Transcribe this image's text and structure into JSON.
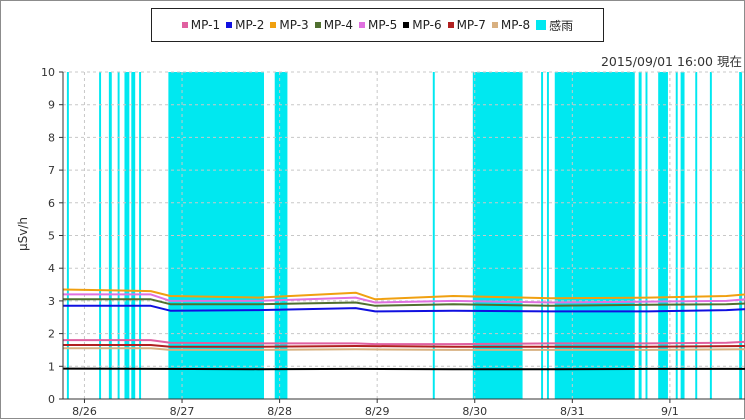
{
  "chart_data": {
    "type": "line",
    "title": "",
    "timestamp": "2015/09/01 16:00 現在",
    "ylabel": "μSv/h",
    "xlabel": "",
    "ylim": [
      0,
      10
    ],
    "yticks": [
      "0",
      "1",
      "2",
      "3",
      "4",
      "5",
      "6",
      "7",
      "8",
      "9",
      "10"
    ],
    "grid": true,
    "legend_position": "top",
    "x_range_days": [
      0,
      7
    ],
    "x_tick_labels": [
      {
        "label": "8/26",
        "day": 0.22
      },
      {
        "label": "8/27",
        "day": 1.22
      },
      {
        "label": "8/28",
        "day": 2.22
      },
      {
        "label": "8/29",
        "day": 3.22
      },
      {
        "label": "8/30",
        "day": 4.22
      },
      {
        "label": "8/31",
        "day": 5.22
      },
      {
        "label": "9/1",
        "day": 6.22
      }
    ],
    "series": [
      {
        "name": "MP-1",
        "color": "#e060a0",
        "x": [
          0,
          0.9,
          1.1,
          2.0,
          3.0,
          3.2,
          4.0,
          5.0,
          6.0,
          6.8,
          7.0
        ],
        "values": [
          1.8,
          1.8,
          1.72,
          1.7,
          1.7,
          1.68,
          1.68,
          1.7,
          1.7,
          1.72,
          1.75
        ]
      },
      {
        "name": "MP-2",
        "color": "#1010e0",
        "x": [
          0,
          0.9,
          1.1,
          2.0,
          3.0,
          3.2,
          4.0,
          5.0,
          6.0,
          6.8,
          7.0
        ],
        "values": [
          2.85,
          2.85,
          2.7,
          2.72,
          2.78,
          2.68,
          2.7,
          2.68,
          2.68,
          2.72,
          2.75
        ]
      },
      {
        "name": "MP-3",
        "color": "#f0a010",
        "x": [
          0,
          0.9,
          1.1,
          2.0,
          3.0,
          3.2,
          4.0,
          5.0,
          6.0,
          6.8,
          7.0
        ],
        "values": [
          3.35,
          3.3,
          3.15,
          3.1,
          3.25,
          3.05,
          3.15,
          3.08,
          3.1,
          3.15,
          3.2
        ]
      },
      {
        "name": "MP-4",
        "color": "#507030",
        "x": [
          0,
          0.9,
          1.1,
          2.0,
          3.0,
          3.2,
          4.0,
          5.0,
          6.0,
          6.8,
          7.0
        ],
        "values": [
          3.05,
          3.05,
          2.9,
          2.9,
          2.95,
          2.85,
          2.9,
          2.85,
          2.88,
          2.9,
          2.92
        ]
      },
      {
        "name": "MP-5",
        "color": "#e070e0",
        "x": [
          0,
          0.9,
          1.1,
          2.0,
          3.0,
          3.2,
          4.0,
          5.0,
          6.0,
          6.8,
          7.0
        ],
        "values": [
          3.2,
          3.2,
          3.0,
          3.0,
          3.1,
          2.95,
          3.0,
          2.95,
          2.98,
          3.0,
          3.05
        ]
      },
      {
        "name": "MP-6",
        "color": "#000000",
        "x": [
          0,
          1.0,
          2.0,
          3.0,
          4.0,
          5.0,
          6.0,
          7.0
        ],
        "values": [
          0.93,
          0.92,
          0.91,
          0.92,
          0.91,
          0.91,
          0.92,
          0.92
        ]
      },
      {
        "name": "MP-7",
        "color": "#b02020",
        "x": [
          0,
          0.9,
          1.1,
          2.0,
          3.0,
          4.0,
          5.0,
          6.0,
          7.0
        ],
        "values": [
          1.65,
          1.65,
          1.6,
          1.6,
          1.62,
          1.6,
          1.6,
          1.6,
          1.62
        ]
      },
      {
        "name": "MP-8",
        "color": "#d8b080",
        "x": [
          0,
          0.9,
          1.1,
          2.0,
          3.0,
          4.0,
          5.0,
          6.0,
          7.0
        ],
        "values": [
          1.55,
          1.55,
          1.5,
          1.5,
          1.52,
          1.5,
          1.5,
          1.5,
          1.52
        ]
      }
    ],
    "rain": {
      "name": "感雨",
      "color": "#00e8f0",
      "ranges": [
        [
          0.04,
          0.06
        ],
        [
          0.37,
          0.39
        ],
        [
          0.47,
          0.5
        ],
        [
          0.56,
          0.58
        ],
        [
          0.63,
          0.68
        ],
        [
          0.7,
          0.74
        ],
        [
          0.78,
          0.8
        ],
        [
          1.08,
          2.06
        ],
        [
          2.17,
          2.3
        ],
        [
          3.79,
          3.81
        ],
        [
          4.2,
          4.71
        ],
        [
          4.9,
          4.92
        ],
        [
          4.96,
          4.98
        ],
        [
          5.04,
          5.86
        ],
        [
          5.9,
          5.93
        ],
        [
          5.97,
          5.99
        ],
        [
          6.1,
          6.2
        ],
        [
          6.28,
          6.3
        ],
        [
          6.33,
          6.37
        ],
        [
          6.48,
          6.5
        ],
        [
          6.63,
          6.65
        ],
        [
          6.93,
          6.96
        ]
      ]
    }
  }
}
